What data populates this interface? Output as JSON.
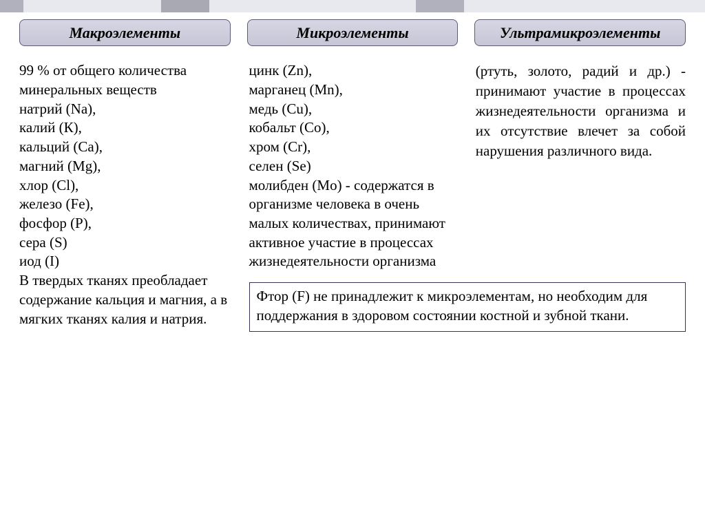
{
  "top_bar_colors": [
    "#b1b1be",
    "#e8e9ef",
    "#a8a9b2",
    "#e8e9ef",
    "#b1b1be",
    "#e8e9ef"
  ],
  "top_bar_widths": [
    34,
    200,
    70,
    300,
    70,
    350
  ],
  "headers": {
    "h1": "Макроэлементы",
    "h2": "Микроэлементы",
    "h3": "Ультрамикроэлементы"
  },
  "col1": "99 % от общего количества минеральных веществ\nнатрий (Na),\nкалий (К),\nкальций (Ca),\nмагний (Mg),\nхлор (Cl),\nжелезо (Fe),\nфосфор (Р),\nсера (S)\nиод (I)\nВ твердых тканях преобладает содержание кальция и магния, а в мягких тканях калия и натрия.",
  "col2": "цинк (Zn),\nмарганец (Mn),\nмедь (Cu),\nкобальт (Co),\nхром (Cr),\nселен (Se)\nмолибден (Mo) - содержатся в организме человека в очень малых количествах, принимают активное участие в процессах жизнедеятельности организма",
  "col3": "(ртуть, золото, радий и др.) - принимают участие в процессах жизнедеятельности организма и их отсутствие влечет за собой нарушения различного вида.",
  "footnote": "Фтор (F) не принадлежит к микроэлементам, но необходим для поддержания в здоровом состоянии костной и зубной ткани."
}
